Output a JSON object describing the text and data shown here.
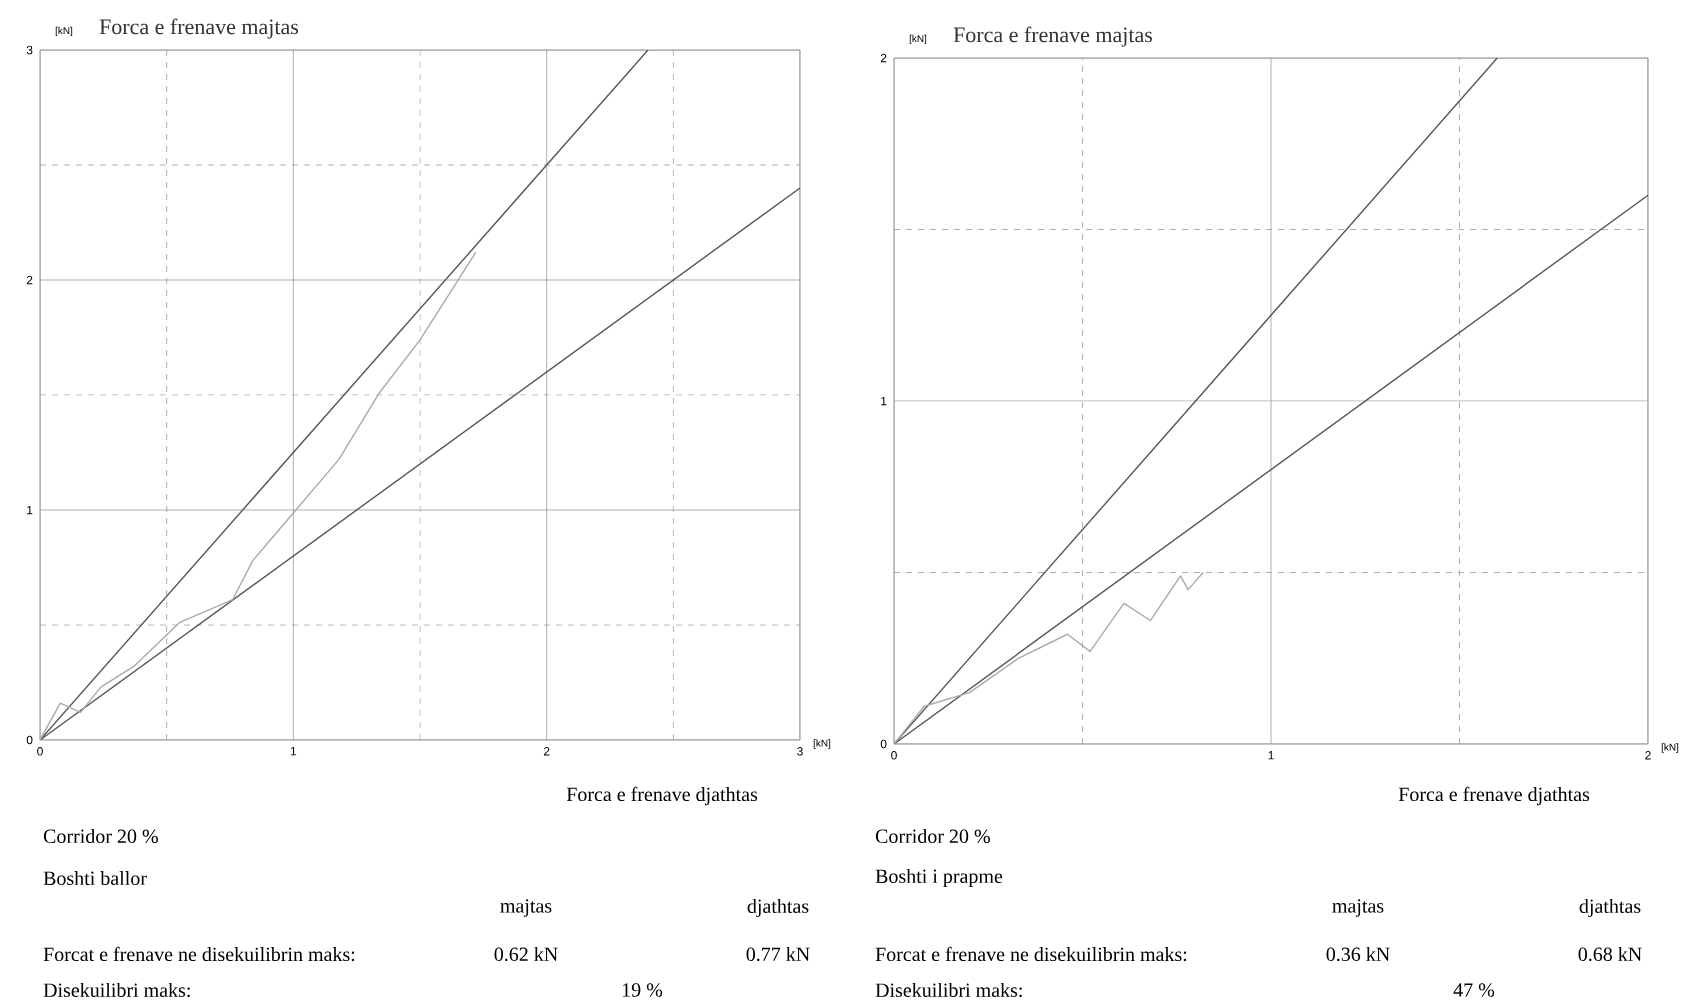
{
  "chart_data": [
    {
      "type": "line",
      "ylabel": "Forca e frenave majtas",
      "xlabel": "Forca e frenave djathtas",
      "xlim": [
        0,
        3
      ],
      "ylim": [
        0,
        3
      ],
      "xticks": [
        0,
        {
          "value": 0.5,
          "label": null
        },
        1,
        {
          "value": 1.5,
          "label": null
        },
        2,
        {
          "value": 2.5,
          "label": null
        },
        3
      ],
      "yticks": [
        0,
        {
          "value": 0.5,
          "label": null
        },
        1,
        {
          "value": 1.5,
          "label": null
        },
        2,
        {
          "value": 2.5,
          "label": null
        },
        3
      ],
      "grid": true,
      "series": [
        {
          "color": "#555555",
          "x": [
            0,
            2.4
          ],
          "values": [
            0,
            3
          ]
        },
        {
          "color": "#555555",
          "x": [
            0,
            3
          ],
          "values": [
            0,
            2.4
          ]
        },
        {
          "color": "#aaaaaa",
          "x": [
            0,
            0.08,
            0.16,
            0.24,
            0.37,
            0.55,
            0.76,
            0.84,
            1.01,
            1.18,
            1.34,
            1.5,
            1.72
          ],
          "values": [
            0,
            0.16,
            0.12,
            0.23,
            0.32,
            0.51,
            0.61,
            0.78,
            1.0,
            1.22,
            1.51,
            1.74,
            2.12
          ]
        }
      ],
      "annotations": [
        "[kN]",
        "[kN]",
        "Corridor  20 %",
        "Boshti ballor",
        "majtas",
        "djathtas",
        "Forcat e frenave ne disekuilibrin maks:",
        "0.62  kN",
        "0.77  kN",
        "Disekuilibri maks:",
        "19  %"
      ]
    },
    {
      "type": "line",
      "ylabel": "Forca e frenave majtas",
      "xlabel": "Forca e frenave djathtas",
      "xlim": [
        0,
        2
      ],
      "ylim": [
        0,
        2
      ],
      "xticks": [
        0,
        {
          "value": 0.5,
          "label": null
        },
        1,
        {
          "value": 1.5,
          "label": null
        },
        2
      ],
      "yticks": [
        0,
        {
          "value": 0.5,
          "label": null
        },
        1,
        {
          "value": 1.5,
          "label": null
        },
        2
      ],
      "grid": true,
      "series": [
        {
          "color": "#555555",
          "x": [
            0,
            1.6
          ],
          "values": [
            0,
            2
          ]
        },
        {
          "color": "#555555",
          "x": [
            0,
            2
          ],
          "values": [
            0,
            1.6
          ]
        },
        {
          "color": "#aaaaaa",
          "x": [
            0,
            0.08,
            0.2,
            0.33,
            0.46,
            0.52,
            0.61,
            0.68,
            0.76,
            0.78,
            0.82
          ],
          "values": [
            0,
            0.11,
            0.15,
            0.25,
            0.32,
            0.27,
            0.41,
            0.36,
            0.49,
            0.45,
            0.5
          ]
        }
      ],
      "annotations": [
        "[kN]",
        "[kN]",
        "Corridor  20 %",
        "Boshti i prapme",
        "majtas",
        "djathtas",
        "Forcat e frenave ne disekuilibrin maks:",
        "0.36  kN",
        "0.68  kN",
        "Disekuilibri maks:",
        "47  %"
      ]
    }
  ]
}
